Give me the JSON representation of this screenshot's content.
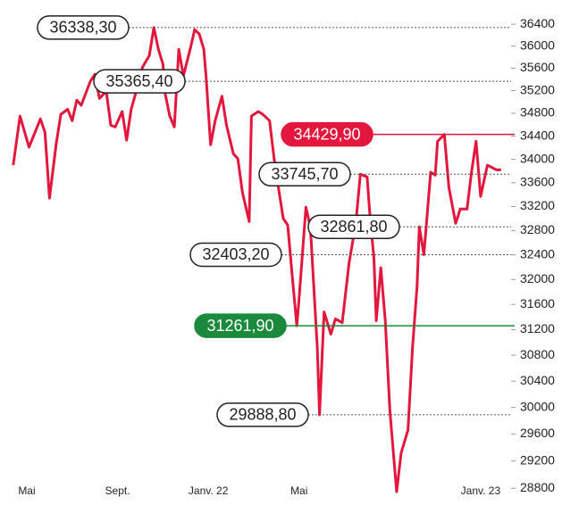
{
  "chart_data": {
    "type": "line",
    "yscale": "log",
    "xlim": [
      -1,
      21.5
    ],
    "xticks": [
      {
        "value": 0,
        "label": "Mai"
      },
      {
        "value": 4,
        "label": "Sept."
      },
      {
        "value": 8,
        "label": "Janv. 22"
      },
      {
        "value": 12,
        "label": "Mai"
      },
      {
        "value": 20,
        "label": "Janv. 23"
      }
    ],
    "ylim": [
      28700,
      36500
    ],
    "yticks": [
      28800,
      29200,
      29600,
      30000,
      30400,
      30800,
      31200,
      31600,
      32000,
      32400,
      32800,
      33200,
      33600,
      34000,
      34400,
      34800,
      35200,
      35600,
      36000,
      36400
    ],
    "series": [
      {
        "color": "#e3173e",
        "x": [
          -0.6,
          -0.3,
          0.1,
          0.6,
          0.8,
          1.0,
          1.3,
          1.5,
          1.8,
          2.0,
          2.2,
          2.4,
          2.8,
          3.0,
          3.2,
          3.5,
          3.7,
          3.9,
          4.2,
          4.4,
          4.6,
          4.9,
          5.1,
          5.4,
          5.6,
          5.8,
          6.0,
          6.1,
          6.3,
          6.5,
          6.7,
          6.9,
          7.2,
          7.4,
          7.6,
          7.8,
          7.9,
          8.1,
          8.3,
          8.6,
          8.8,
          9.1,
          9.3,
          9.5,
          9.8,
          9.9,
          10.2,
          10.4,
          10.7,
          10.9,
          11.1,
          11.3,
          11.5,
          11.7,
          11.9,
          12.0,
          12.3,
          12.5,
          12.8,
          12.9,
          13.1,
          13.4,
          13.6,
          13.9,
          14.2,
          14.5,
          14.7,
          15.0,
          15.1,
          15.3,
          15.4,
          15.6,
          15.8,
          16.0,
          16.3,
          16.5,
          16.8,
          17.0,
          17.2,
          17.3,
          17.5,
          17.8,
          18.0,
          18.1,
          18.4,
          18.6,
          18.9,
          19.1,
          19.4,
          19.6,
          19.8,
          20.0,
          20.3,
          20.7,
          20.9
        ],
        "values": [
          33900,
          34750,
          34210,
          34700,
          34470,
          33340,
          34280,
          34780,
          34870,
          34670,
          35030,
          34940,
          35365.4,
          35490,
          35060,
          35190,
          34590,
          34560,
          34830,
          34330,
          34870,
          35300,
          35620,
          35830,
          36338.3,
          35940,
          35670,
          35140,
          34750,
          34560,
          35940,
          35460,
          35940,
          36300,
          36220,
          35940,
          35460,
          34250,
          34670,
          35100,
          34590,
          34100,
          34010,
          33440,
          32950,
          34750,
          34830,
          34780,
          34670,
          34010,
          33490,
          33000,
          32890,
          32050,
          31261.9,
          31690,
          33190,
          32850,
          30920,
          29888.8,
          31480,
          31130,
          31370,
          31310,
          32260,
          32920,
          33745.7,
          33700,
          33150,
          32340,
          31340,
          32190,
          31340,
          29960,
          28750,
          29320,
          29660,
          30920,
          31900,
          32861.8,
          32403.2,
          33780,
          33730,
          34310,
          34429.9,
          33520,
          32920,
          33160,
          33160,
          33780,
          34310,
          33370,
          33900,
          33820,
          33820
        ]
      }
    ],
    "annotations": [
      {
        "label": "36338,30",
        "value": 36338.3
      },
      {
        "label": "35365,40",
        "value": 35365.4
      },
      {
        "label": "34429,90",
        "value": 34429.9,
        "color": "#e3173e"
      },
      {
        "label": "33745,70",
        "value": 33745.7
      },
      {
        "label": "32861,80",
        "value": 32861.8
      },
      {
        "label": "32403,20",
        "value": 32403.2
      },
      {
        "label": "31261,90",
        "value": 31261.9,
        "color": "#1b8a3c"
      },
      {
        "label": "29888,80",
        "value": 29888.8
      }
    ]
  }
}
